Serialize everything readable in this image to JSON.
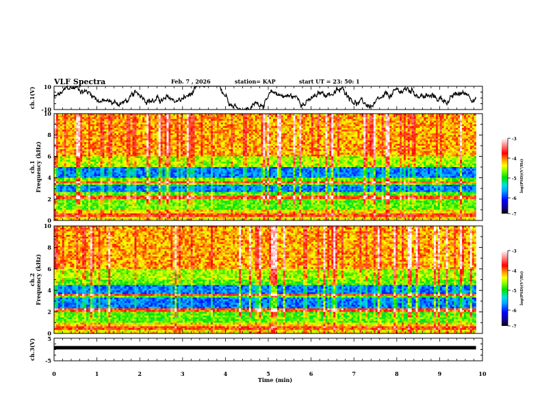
{
  "header": {
    "title": "VLF Spectra",
    "date": "Feb. 7  , 2026",
    "station": "station= KAP",
    "start": "start  UT  =   23: 50: 1"
  },
  "chart_data": [
    {
      "type": "line",
      "name": "ch1-waveform",
      "ylabel": "ch.1(V)",
      "ylim": [
        -10,
        10
      ],
      "yticks": [
        "10",
        "-10"
      ],
      "xlim": [
        0,
        10
      ],
      "data_end_min": 9.85
    },
    {
      "type": "heatmap",
      "name": "ch1-spectrogram",
      "ylabel_line1": "ch.1",
      "ylabel_line2": "Frequency  (kHz)",
      "ylim": [
        0,
        10
      ],
      "yticks": [
        "0",
        "2",
        "4",
        "6",
        "8",
        "10"
      ],
      "colorbar": {
        "label": "log(PSD)(V²/Hz)",
        "range": [
          -7,
          -3
        ],
        "ticks": [
          "-3",
          "-4",
          "-5",
          "-6",
          "-7"
        ]
      },
      "low_power_bands_khz": [
        [
          2.6,
          3.4
        ],
        [
          4.0,
          5.0
        ]
      ],
      "xlim": [
        0,
        10
      ],
      "data_end_min": 9.85
    },
    {
      "type": "heatmap",
      "name": "ch2-spectrogram",
      "ylabel_line1": "ch.2",
      "ylabel_line2": "Frequency  (kHz)",
      "ylim": [
        0,
        10
      ],
      "yticks": [
        "0",
        "2",
        "4",
        "6",
        "8",
        "10"
      ],
      "colorbar": {
        "label": "log(PSD)(V²/Hz)",
        "range": [
          -7,
          -3
        ],
        "ticks": [
          "-3",
          "-4",
          "-5",
          "-6",
          "-7"
        ]
      },
      "low_power_bands_khz": [
        [
          2.0,
          3.4
        ],
        [
          3.7,
          4.5
        ]
      ],
      "xlim": [
        0,
        10
      ],
      "data_end_min": 9.85
    },
    {
      "type": "line",
      "name": "ch3-waveform",
      "ylabel": "ch.3(V)",
      "ylim": [
        -5,
        5
      ],
      "yticks": [
        "5",
        "-5"
      ],
      "level_v": 0.8,
      "xlim": [
        0,
        10
      ],
      "data_end_min": 9.85
    }
  ],
  "xaxis": {
    "label": "Time  (min)",
    "ticks": [
      "0",
      "1",
      "2",
      "3",
      "4",
      "5",
      "6",
      "7",
      "8",
      "9",
      "10"
    ]
  },
  "colors": {
    "frame": "#000000"
  }
}
